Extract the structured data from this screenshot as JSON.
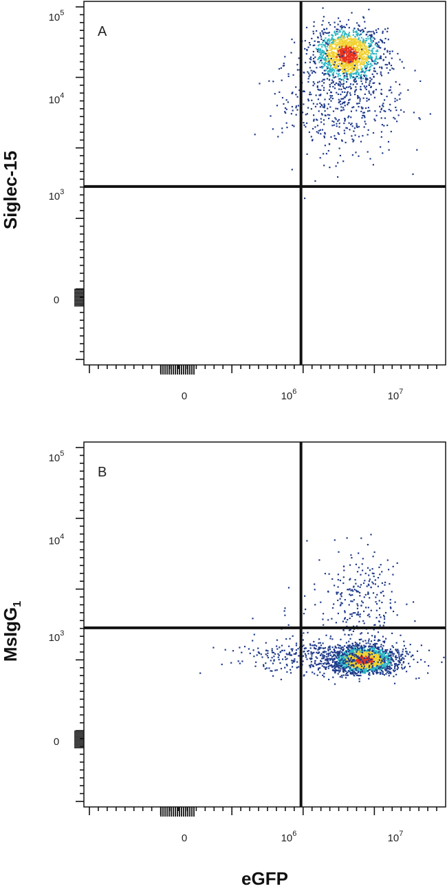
{
  "chart_data": [
    {
      "type": "scatter",
      "panel_label": "A",
      "ylabel": "Siglec-15",
      "ylabel_sub": "",
      "xlabel": "",
      "x_ticks": [
        {
          "base": "0",
          "exp": ""
        },
        {
          "base": "10",
          "exp": "6"
        },
        {
          "base": "10",
          "exp": "7"
        }
      ],
      "y_ticks": [
        {
          "base": "10",
          "exp": "5"
        },
        {
          "base": "10",
          "exp": "4"
        },
        {
          "base": "10",
          "exp": "3"
        },
        {
          "base": "0",
          "exp": ""
        }
      ],
      "quadrant_x": 1300000,
      "quadrant_y": 1500,
      "clusters": [
        {
          "cx": 3500000,
          "cy": 38000,
          "sx": 0.15,
          "sy": 0.14,
          "n": 1500,
          "dense": true
        },
        {
          "cx": 3000000,
          "cy": 12000,
          "sx": 0.3,
          "sy": 0.3,
          "n": 500,
          "dense": false
        }
      ],
      "grid": false,
      "legend": "none"
    },
    {
      "type": "scatter",
      "panel_label": "B",
      "ylabel": "MsIgG",
      "ylabel_sub": "1",
      "xlabel": "eGFP",
      "x_ticks": [
        {
          "base": "0",
          "exp": ""
        },
        {
          "base": "10",
          "exp": "6"
        },
        {
          "base": "10",
          "exp": "7"
        }
      ],
      "y_ticks": [
        {
          "base": "10",
          "exp": "5"
        },
        {
          "base": "10",
          "exp": "4"
        },
        {
          "base": "10",
          "exp": "3"
        },
        {
          "base": "0",
          "exp": ""
        }
      ],
      "quadrant_x": 1300000,
      "quadrant_y": 1500,
      "clusters": [
        {
          "cx": 5000000,
          "cy": 350,
          "sx": 0.13,
          "sy": 0.2,
          "n": 2000,
          "dense": true
        },
        {
          "cx": 2500000,
          "cy": 450,
          "sx": 0.4,
          "sy": 0.3,
          "n": 600,
          "dense": false
        },
        {
          "cx": 4500000,
          "cy": 3000,
          "sx": 0.18,
          "sy": 0.25,
          "n": 220,
          "dense": false
        }
      ],
      "grid": false,
      "legend": "none"
    }
  ],
  "colors": {
    "density_low": "#1f3a8a",
    "density_mid": "#2cb6c4",
    "density_high": "#f2d232",
    "density_peak": "#e8331e",
    "axis": "#111111"
  }
}
